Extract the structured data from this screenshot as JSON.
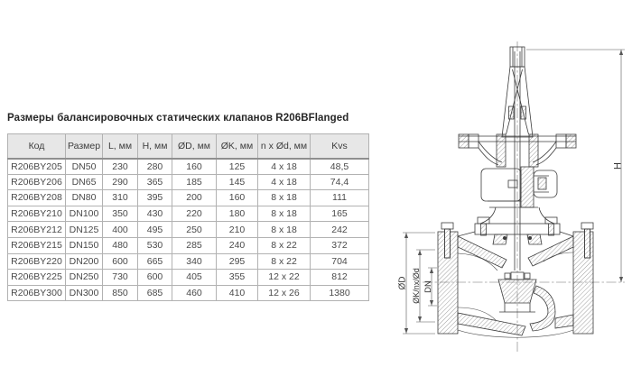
{
  "title": {
    "text": "Размеры балансировочных статических клапанов R206B",
    "suffix": "Flanged"
  },
  "table": {
    "headers": [
      "Код",
      "Размер",
      "L, мм",
      "H, мм",
      "ØD, мм",
      "ØK, мм",
      "n x Ød, мм",
      "Kvs"
    ],
    "rows": [
      [
        "R206BY205",
        "DN50",
        "230",
        "280",
        "160",
        "125",
        "4 x 18",
        "48,5"
      ],
      [
        "R206BY206",
        "DN65",
        "290",
        "365",
        "185",
        "145",
        "4 x 18",
        "74,4"
      ],
      [
        "R206BY208",
        "DN80",
        "310",
        "395",
        "200",
        "160",
        "8 x 18",
        "111"
      ],
      [
        "R206BY210",
        "DN100",
        "350",
        "430",
        "220",
        "180",
        "8 x 18",
        "165"
      ],
      [
        "R206BY212",
        "DN125",
        "400",
        "495",
        "250",
        "210",
        "8 x 18",
        "242"
      ],
      [
        "R206BY215",
        "DN150",
        "480",
        "530",
        "285",
        "240",
        "8 x 22",
        "372"
      ],
      [
        "R206BY220",
        "DN200",
        "600",
        "665",
        "340",
        "295",
        "8 x 22",
        "704"
      ],
      [
        "R206BY225",
        "DN250",
        "730",
        "600",
        "405",
        "355",
        "12 x 22",
        "812"
      ],
      [
        "R206BY300",
        "DN300",
        "850",
        "685",
        "460",
        "410",
        "12 x 26",
        "1380"
      ]
    ]
  },
  "drawing": {
    "dim_h": "H",
    "dim_od": "ØD",
    "dim_ok": "ØK/nx/Ød",
    "dim_dn": "DN"
  },
  "colors": {
    "header_bg": "#e7e7e7",
    "border_outer": "#8f8f8f",
    "border_inner": "#b2b2b2",
    "text": "#444444",
    "drawing_line": "#3c3c3c"
  }
}
